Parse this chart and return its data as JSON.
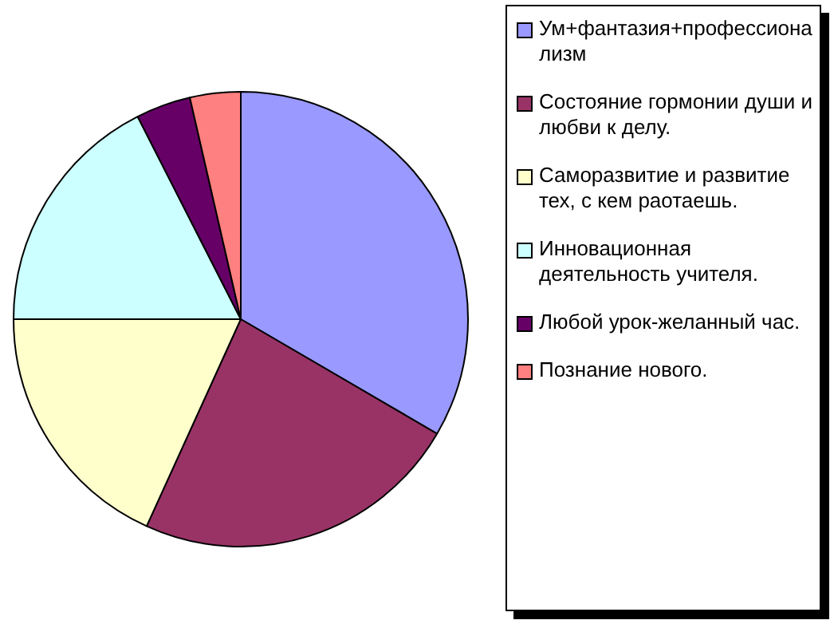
{
  "chart_data": {
    "type": "pie",
    "categories": [
      "Ум+фантазия+профессионализм",
      "Состояние гормонии души и любви к делу.",
      "Саморазвитие и развитие тех, с кем раотаешь.",
      "Инновационная деятельность учителя.",
      "Любой урок-желанный час.",
      "Познание нового."
    ],
    "values": [
      33.4,
      23.4,
      18.2,
      17.5,
      3.9,
      3.6
    ],
    "colors": [
      "#9999ff",
      "#993366",
      "#ffffcc",
      "#ccffff",
      "#660066",
      "#ff8080"
    ],
    "legend": "right"
  }
}
